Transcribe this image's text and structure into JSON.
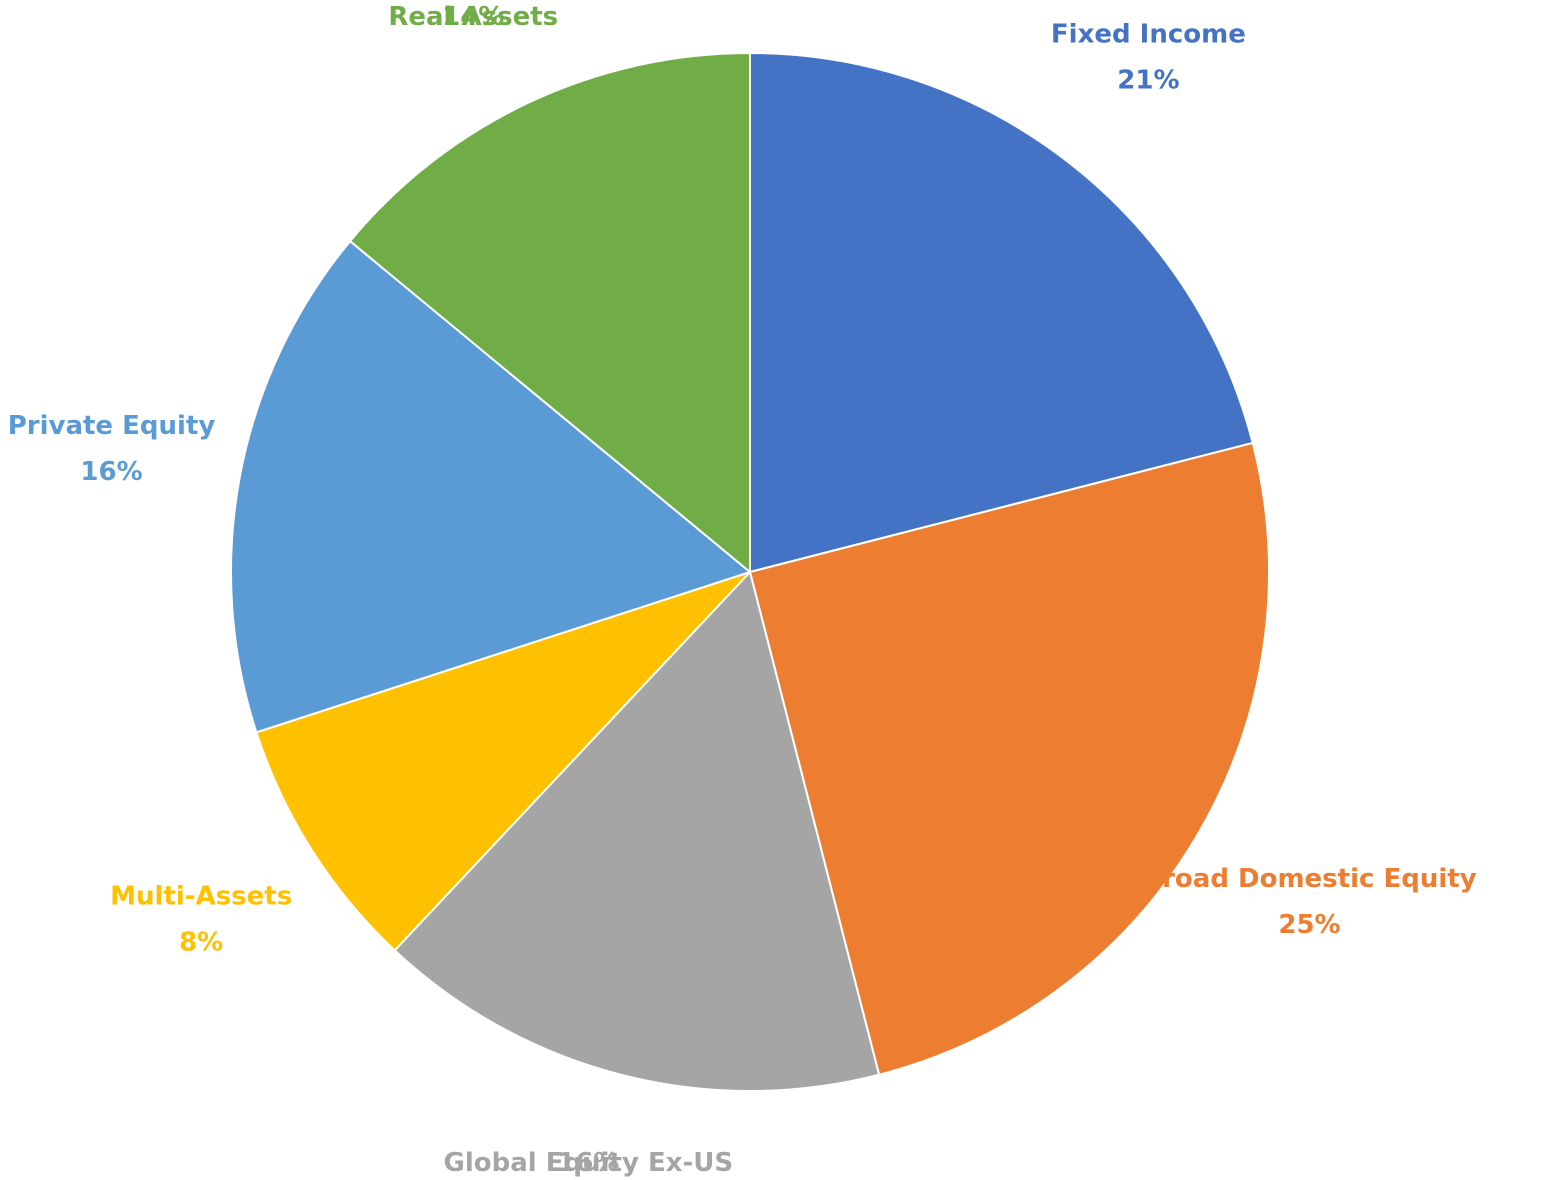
{
  "chart_data": {
    "type": "pie",
    "categories": [
      "Fixed Income",
      "Broad Domestic Equity",
      "Global Equity Ex-US",
      "Multi-Assets",
      "Private Equity",
      "Real Assets"
    ],
    "values": [
      21,
      25,
      16,
      8,
      16,
      14
    ],
    "value_labels": [
      "21%",
      "25%",
      "16%",
      "8%",
      "16%",
      "14%"
    ],
    "colors": [
      "#4472c4",
      "#ed7d31",
      "#a5a5a5",
      "#ffc000",
      "#5b9bd5",
      "#70ad47"
    ]
  }
}
